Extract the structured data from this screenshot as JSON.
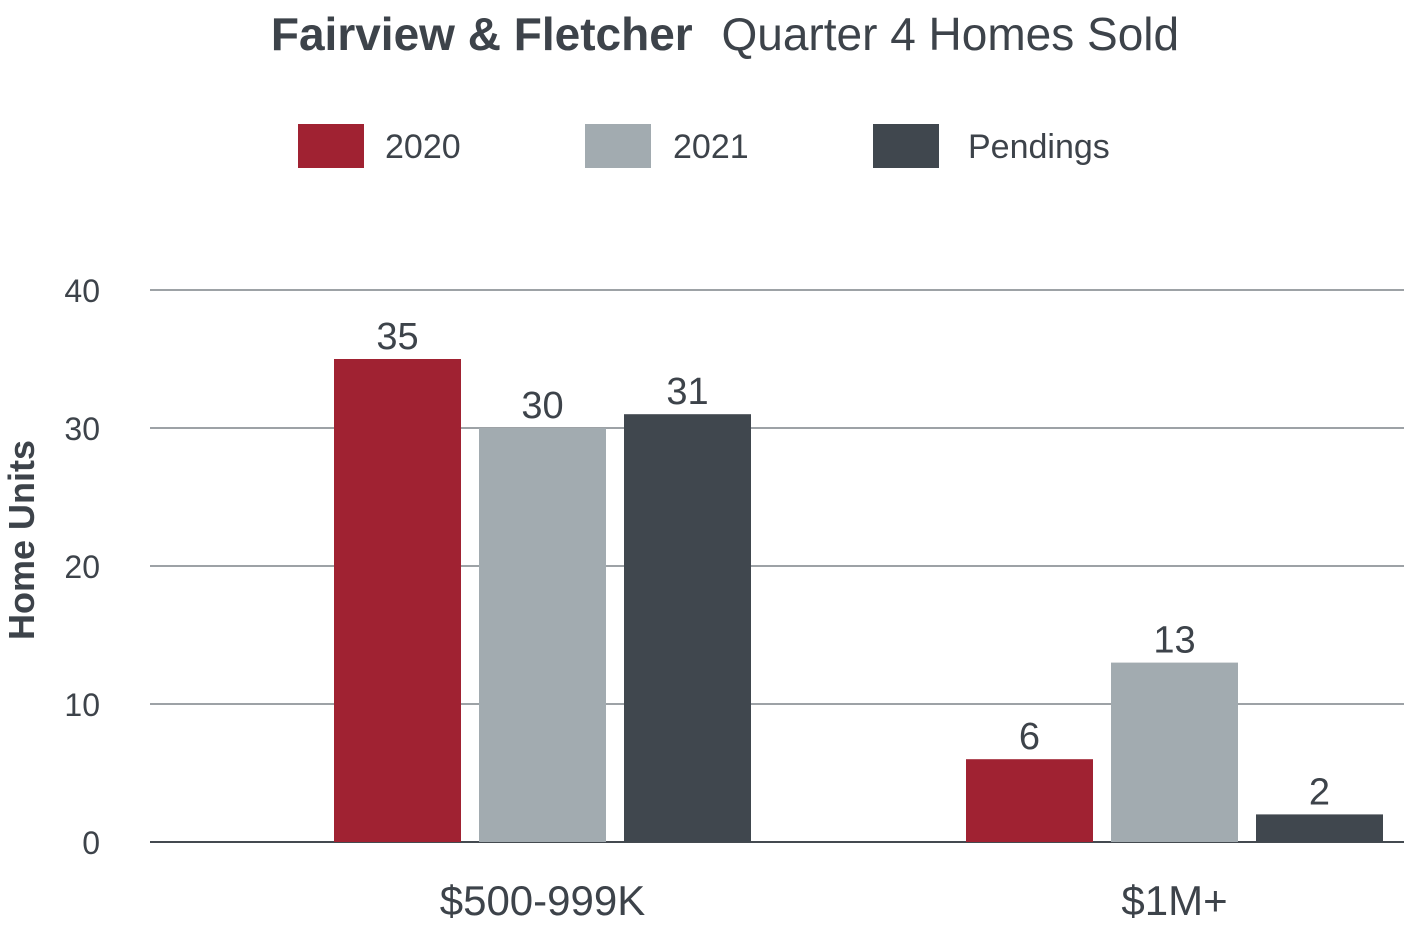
{
  "chart_data": {
    "type": "bar",
    "title_bold": "Fairview & Fletcher",
    "title_rest": "Quarter 4 Homes Sold",
    "xlabel": "",
    "ylabel": "Home Units",
    "categories": [
      "$500-999K",
      "$1M+"
    ],
    "series": [
      {
        "name": "2020",
        "values": [
          35,
          6
        ],
        "color": "#a02232"
      },
      {
        "name": "2021",
        "values": [
          30,
          13
        ],
        "color": "#a2abb0"
      },
      {
        "name": "Pendings",
        "values": [
          31,
          2
        ],
        "color": "#40474e"
      }
    ],
    "yticks": [
      "0",
      "10",
      "20",
      "30",
      "40"
    ],
    "ylim": [
      0,
      40
    ],
    "grid": true,
    "legend_position": "top-center",
    "data_labels": true
  }
}
